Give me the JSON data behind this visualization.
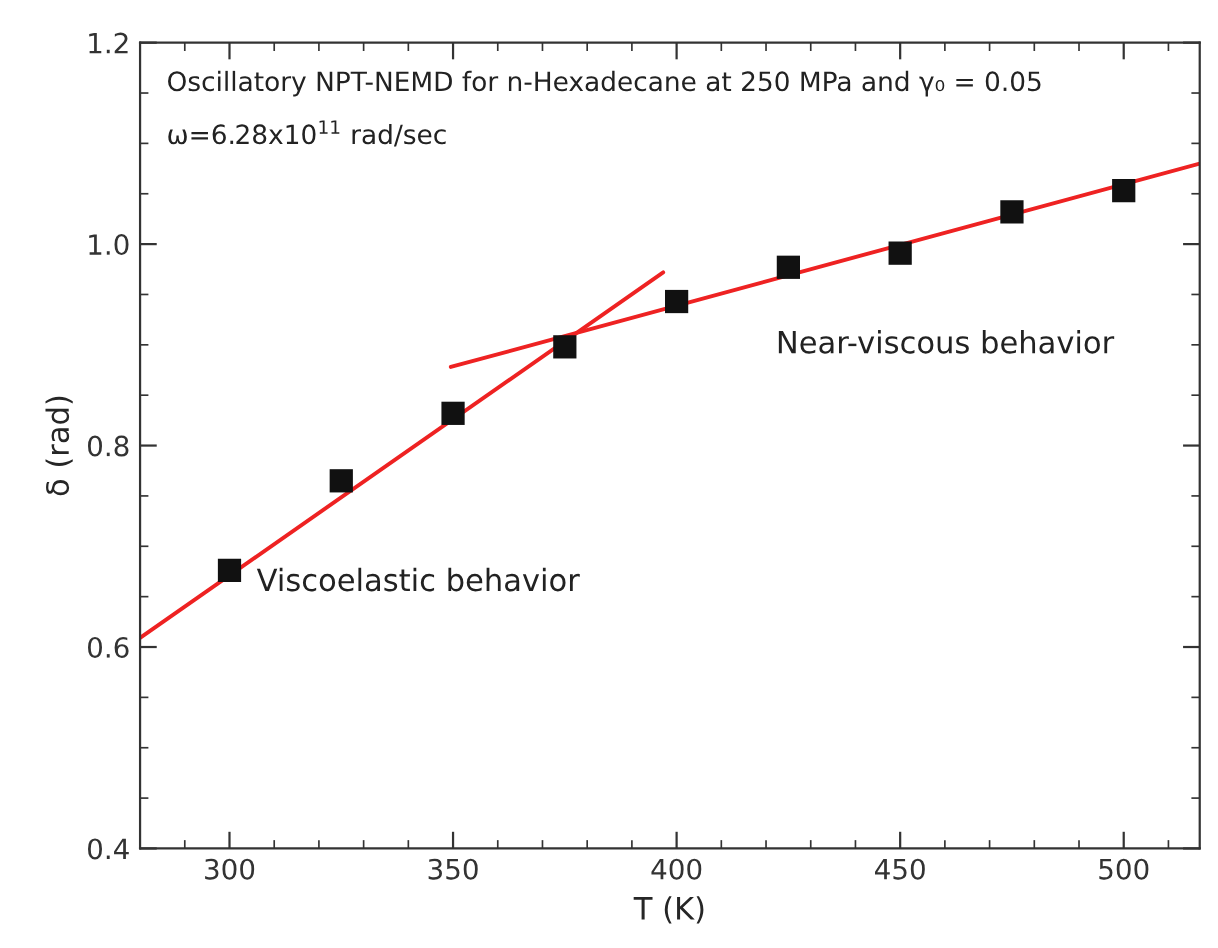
{
  "chart_data": {
    "type": "scatter",
    "xlabel": "T (K)",
    "ylabel": "δ (rad)",
    "x": [
      300,
      325,
      350,
      375,
      400,
      425,
      450,
      475,
      500
    ],
    "series": [
      {
        "color": "#111111",
        "marker": "square",
        "values": [
          0.676,
          0.765,
          0.832,
          0.898,
          0.943,
          0.977,
          0.991,
          1.032,
          1.053
        ]
      },
      {
        "type": "line",
        "color": "#ee2222",
        "x": [
          280,
          397
        ],
        "values": [
          0.609,
          0.972
        ]
      },
      {
        "type": "line",
        "color": "#ee2222",
        "x": [
          349.5,
          517
        ],
        "values": [
          0.878,
          1.08
        ]
      }
    ],
    "xlim": [
      280,
      517
    ],
    "xticks": [
      300,
      350,
      400,
      450,
      500
    ],
    "ylim": [
      0.4,
      1.2
    ],
    "yticks": [
      0.4,
      0.6,
      0.8,
      {
        "value": 1.0,
        "label": "1.0"
      },
      1.2
    ],
    "grid": false,
    "legend": false,
    "annotations": [
      "Oscillatory NPT-NEMD for n-Hexadecane at 250 MPa and γ₀ = 0.05",
      "ω=6.28x10$^{11}$ rad/sec",
      "Viscoelastic behavior",
      "Near-viscous behavior"
    ]
  }
}
